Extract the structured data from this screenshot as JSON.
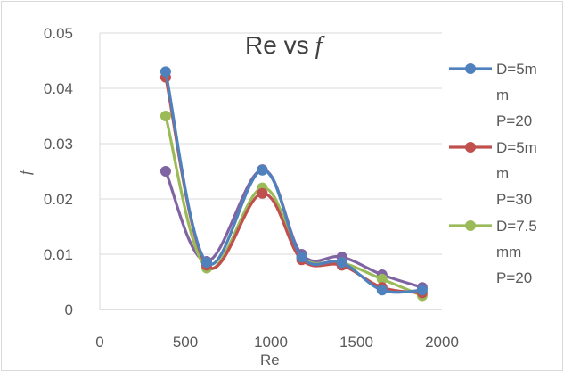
{
  "chart_data": {
    "type": "line",
    "title": "Re vs",
    "title_symbol": "f",
    "xlabel": "Re",
    "ylabel": "f",
    "xlim": [
      0,
      2000
    ],
    "ylim": [
      0,
      0.05
    ],
    "x_ticks": [
      "0",
      "500",
      "1000",
      "1500",
      "2000"
    ],
    "y_ticks": [
      "0",
      "0.01",
      "0.02",
      "0.03",
      "0.04",
      "0.05"
    ],
    "grid": "horizontal",
    "smoothed": true,
    "legend_position": "right",
    "series": [
      {
        "name": "D=5mm P=20",
        "legend_lines": [
          "D=5m",
          "m",
          "P=20"
        ],
        "color": "#4f81bd",
        "x": [
          385,
          625,
          950,
          1180,
          1415,
          1650,
          1885
        ],
        "y": [
          0.043,
          0.0085,
          0.0252,
          0.0095,
          0.0085,
          0.0035,
          0.0035
        ]
      },
      {
        "name": "D=5mm P=30",
        "legend_lines": [
          "D=5m",
          "m",
          "P=30"
        ],
        "color": "#c0504d",
        "x": [
          385,
          625,
          950,
          1180,
          1415,
          1650,
          1885
        ],
        "y": [
          0.042,
          0.008,
          0.021,
          0.009,
          0.008,
          0.004,
          0.003
        ]
      },
      {
        "name": "D=7.5mm P=20",
        "legend_lines": [
          "D=7.5",
          "mm",
          "P=20"
        ],
        "color": "#9bbb59",
        "x": [
          385,
          625,
          950,
          1180,
          1415,
          1650,
          1885
        ],
        "y": [
          0.035,
          0.0075,
          0.022,
          0.0095,
          0.0085,
          0.0055,
          0.0025
        ]
      },
      {
        "name": "",
        "color": "#8064a2",
        "x": [
          385,
          625,
          950,
          1180,
          1415,
          1650,
          1885
        ],
        "y": [
          0.025,
          0.0087,
          0.0253,
          0.01,
          0.0095,
          0.0063,
          0.004
        ]
      }
    ]
  }
}
